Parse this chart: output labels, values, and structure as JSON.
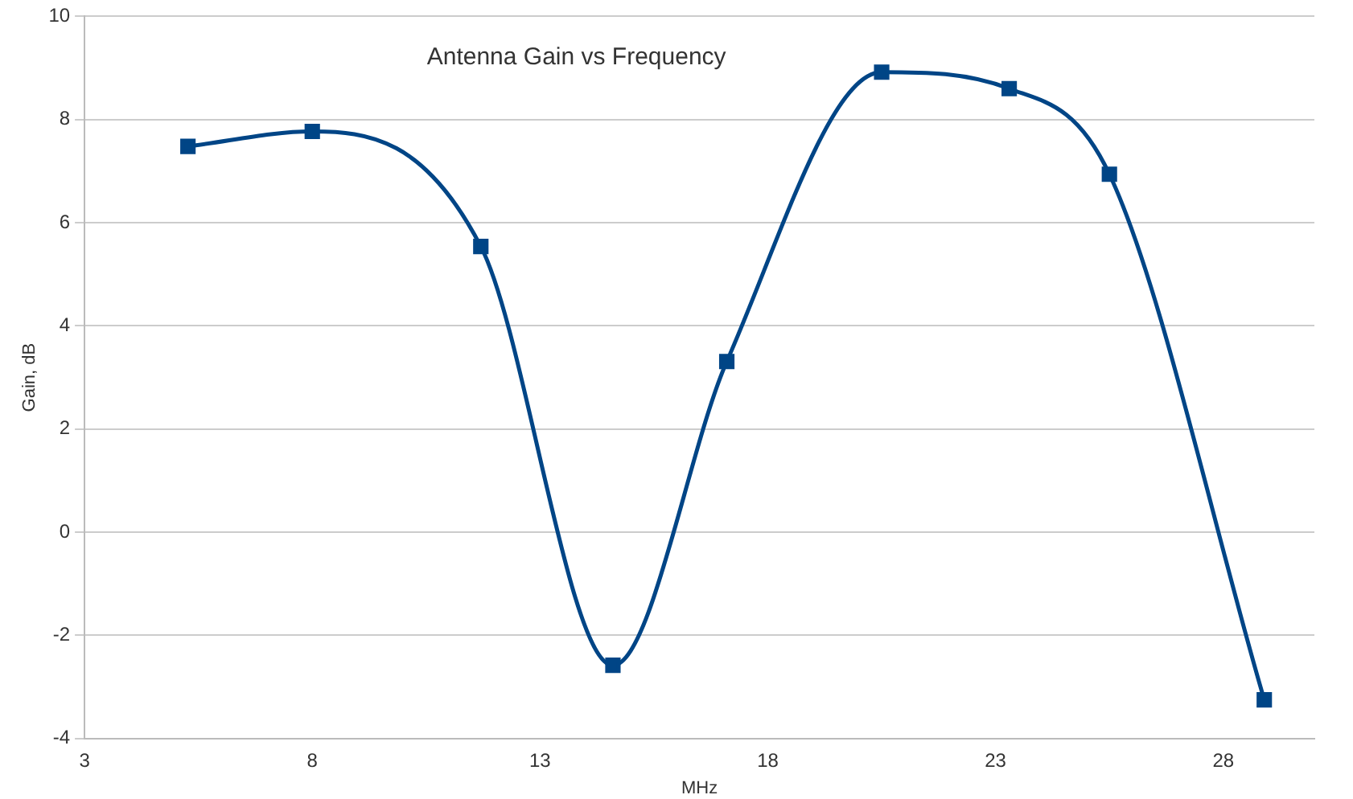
{
  "chart_data": {
    "type": "line",
    "title": "Antenna Gain vs Frequency",
    "xlabel": "MHz",
    "ylabel": "Gain, dB",
    "x": [
      5.27,
      8.0,
      11.7,
      14.6,
      17.1,
      20.5,
      23.3,
      25.5,
      28.9
    ],
    "series": [
      {
        "color": "#004586",
        "values": [
          7.48,
          7.77,
          5.54,
          -2.58,
          3.31,
          8.92,
          8.6,
          6.94,
          -3.25
        ]
      }
    ],
    "xlim": [
      3,
      30
    ],
    "xticks": [
      3,
      8,
      13,
      18,
      23,
      28
    ],
    "ylim": [
      -4,
      10
    ],
    "yticks": [
      -4,
      -2,
      0,
      2,
      4,
      6,
      8,
      10
    ],
    "grid": "y",
    "legend": false,
    "marker": "square",
    "line_style": "solid"
  }
}
